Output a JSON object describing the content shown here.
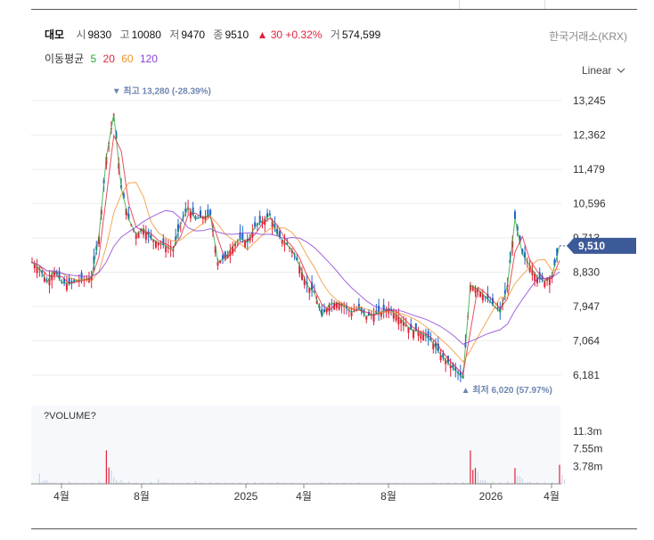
{
  "header": {
    "name": "대모",
    "open_label": "시",
    "open": "9830",
    "high_label": "고",
    "high": "10080",
    "low_label": "저",
    "low": "9470",
    "close_label": "종",
    "close": "9510",
    "change": "▲ 30 +0.32%",
    "volume_label": "거",
    "volume": "574,599",
    "exchange": "한국거래소(KRX)"
  },
  "moving_average": {
    "label": "이동평균",
    "periods": [
      {
        "text": "5",
        "color": "#2aa63a"
      },
      {
        "text": "20",
        "color": "#e0223a"
      },
      {
        "text": "60",
        "color": "#f0922b"
      },
      {
        "text": "120",
        "color": "#8b3fd6"
      }
    ]
  },
  "scale_selector": {
    "label": "Linear",
    "icon": "chevron-down-icon"
  },
  "colors": {
    "up": "#e0223a",
    "down": "#1f63c6",
    "current": "#3d5a98",
    "volume": "#c9d3e8"
  },
  "chart_data": {
    "type": "candlestick",
    "price_axis": {
      "ticks": [
        "13,245",
        "12,362",
        "11,479",
        "10,596",
        "9,713",
        "8,830",
        "7,947",
        "7,064",
        "6,181"
      ],
      "values": [
        13245,
        12362,
        11479,
        10596,
        9713,
        8830,
        7947,
        7064,
        6181
      ]
    },
    "volume_axis": {
      "title": "?VOLUME?",
      "ticks": [
        "11.3m",
        "7.55m",
        "3.78m"
      ],
      "values": [
        11300000,
        7550000,
        3780000
      ]
    },
    "x_ticks": [
      "4월",
      "8월",
      "2025",
      "4월",
      "8월",
      "2026",
      "4월"
    ],
    "current_price": {
      "label": "9,510",
      "value": 9510
    },
    "max_annotation": {
      "text": "▼ 최고 13,280 (-28.39%)",
      "value": 13280
    },
    "min_annotation": {
      "text": "▲ 최저 6,020 (57.97%)",
      "value": 6020
    },
    "close_series": [
      9090,
      8920,
      8580,
      8870,
      8560,
      8530,
      8620,
      8640,
      8700,
      9750,
      11800,
      12900,
      11000,
      10200,
      9800,
      9950,
      9700,
      9600,
      9500,
      9400,
      10100,
      10500,
      10200,
      10250,
      10300,
      9100,
      9200,
      9500,
      9700,
      9600,
      10000,
      10150,
      10300,
      9800,
      9600,
      9400,
      9000,
      8500,
      8300,
      7700,
      8000,
      8050,
      7960,
      7800,
      7900,
      7700,
      7750,
      7800,
      7900,
      7750,
      7550,
      7350,
      7300,
      7200,
      7000,
      6700,
      6500,
      6300,
      6100,
      8500,
      8400,
      8200,
      8000,
      7800,
      8500,
      10200,
      9300,
      9000,
      8700,
      8600,
      8750,
      9510
    ],
    "volume_series": [
      0.2,
      2.2,
      0.7,
      0.3,
      0.4,
      0.5,
      0.3,
      0.2,
      0.3,
      0.6,
      7.2,
      1.5,
      0.8,
      0.5,
      0.3,
      0.3,
      0.4,
      1.0,
      0.3,
      0.3,
      0.2,
      0.3,
      0.6,
      0.3,
      0.4,
      0.3,
      0.3,
      0.3,
      0.3,
      0.3,
      0.4,
      0.3,
      0.3,
      0.4,
      0.3,
      0.3,
      0.2,
      0.3,
      0.2,
      0.4,
      0.3,
      0.2,
      0.2,
      0.2,
      0.3,
      0.2,
      0.2,
      0.2,
      0.3,
      0.2,
      0.2,
      0.2,
      0.2,
      0.2,
      0.3,
      0.2,
      0.3,
      0.3,
      0.4,
      7.2,
      2.5,
      0.8,
      0.5,
      0.4,
      0.6,
      3.4,
      1.1,
      0.5,
      0.4,
      0.3,
      0.4,
      4.1
    ]
  }
}
